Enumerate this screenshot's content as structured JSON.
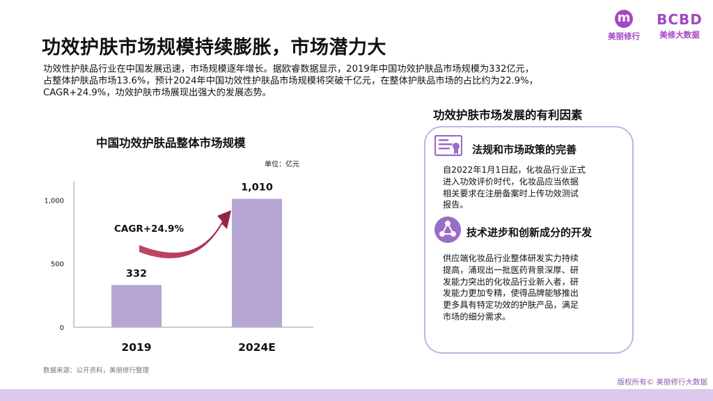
{
  "header": {
    "title": "功效护肤市场规模持续膨胀，市场潜力大",
    "intro_lines": [
      "功效性护肤品行业在中国发展迅速，市场规模逐年增长。据欧睿数据显示，2019年中国功效护肤品市场规模为332亿元，",
      "占整体护肤品市场13.6%，预计2024年中国功效性护肤品市场规模将突破千亿元，在整体护肤品市场的占比约为22.9%，",
      "CAGR+24.9%，功效护肤市场展现出强大的发展态势。"
    ]
  },
  "logos": {
    "left_text": "美丽修行",
    "right_big": "BCBD",
    "right_text": "美修大数据",
    "brand_color": "#a347c4"
  },
  "chart_data": {
    "type": "bar",
    "title": "中国功效护肤品整体市场规模",
    "unit": "单位：亿元",
    "categories": [
      "2019",
      "2024E"
    ],
    "values": [
      332,
      1010
    ],
    "value_labels": [
      "332",
      "1,010"
    ],
    "ylim": [
      0,
      1150
    ],
    "yticks": [
      0,
      500,
      1000
    ],
    "ytick_labels": [
      "0",
      "500",
      "1,000"
    ],
    "annotation": "CAGR+24.9%",
    "bar_color": "#b6a6d4",
    "arrow_color": "#a62b4c",
    "grid": false
  },
  "footer": {
    "source": "数据来源：公开资料，美丽修行整理",
    "copyright": "版权所有© 美丽修行大数据"
  },
  "factors": {
    "title": "功效护肤市场发展的有利因素",
    "items": [
      {
        "icon": "certificate-icon",
        "heading": "法规和市场政策的完善",
        "body_lines": [
          "自2022年1月1日起，化妆品行业正式",
          "进入功效评价时代，化妆品应当依据",
          "相关要求在注册备案时上传功效测试",
          "报告。"
        ]
      },
      {
        "icon": "network-icon",
        "heading": "技术进步和创新成分的开发",
        "body_lines": [
          "供应端化妆品行业整体研发实力持续",
          "提高，涌现出一批医药背景深厚、研",
          "发能力突出的化妆品行业新入者，研",
          "发能力更加专精，使得品牌能够推出",
          "更多具有特定功效的护肤产品，满足",
          "市场的细分需求。"
        ]
      }
    ],
    "accent_color": "#9b6cc8"
  }
}
